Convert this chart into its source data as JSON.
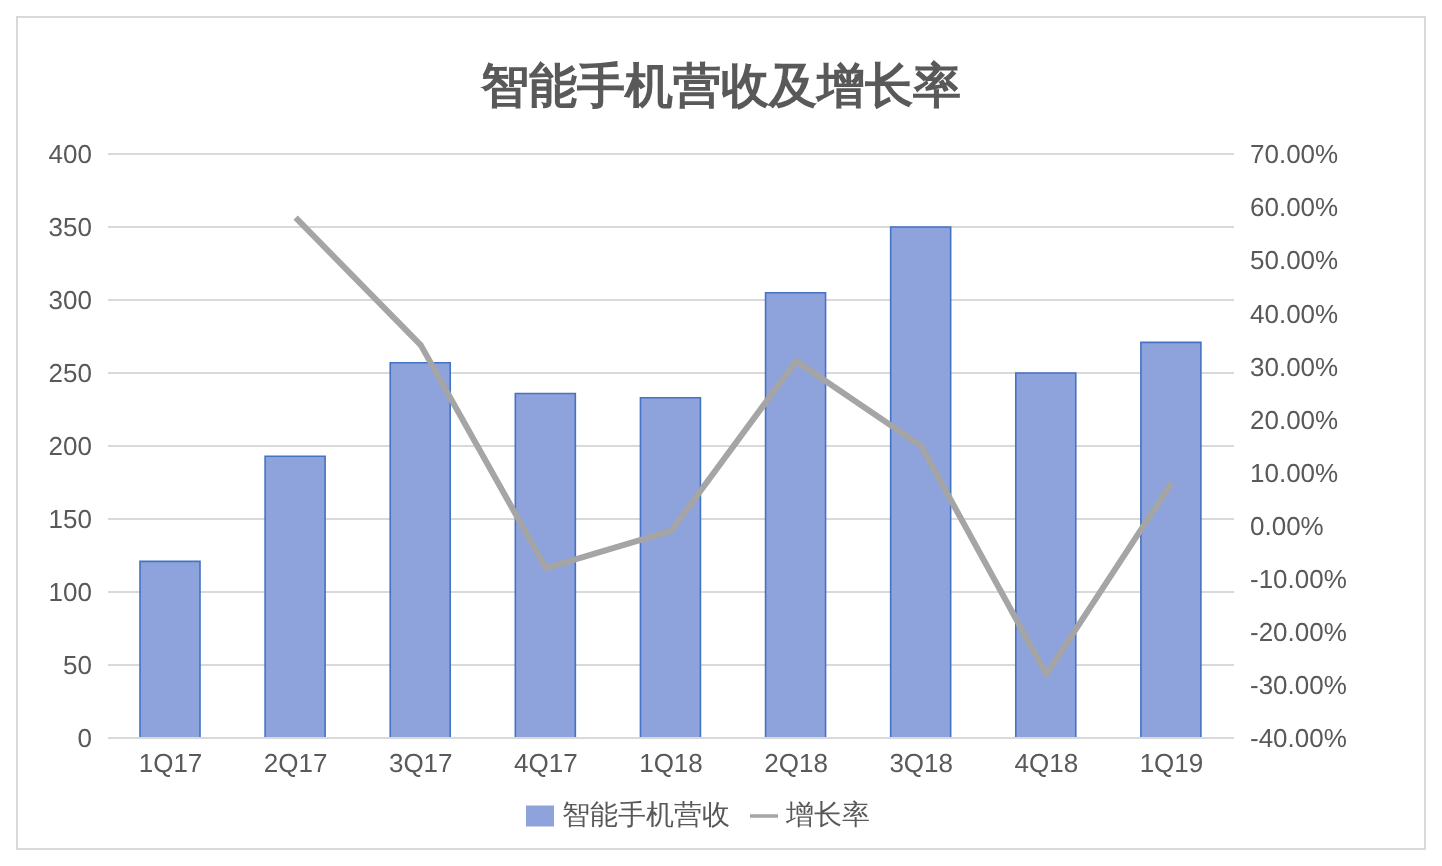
{
  "chart_data": {
    "type": "bar",
    "title": "智能手机营收及增长率",
    "categories": [
      "1Q17",
      "2Q17",
      "3Q17",
      "4Q17",
      "1Q18",
      "2Q18",
      "3Q18",
      "4Q18",
      "1Q19"
    ],
    "series": [
      {
        "name": "智能手机营收",
        "color": "#8ea3dc",
        "values": [
          121,
          193,
          257,
          236,
          233,
          305,
          350,
          250,
          271
        ]
      },
      {
        "name": "增长率",
        "type": "line",
        "axis": "y2",
        "color": "#a5a5a5",
        "values": [
          null,
          58,
          34,
          -8,
          -1,
          31,
          15,
          -28,
          8
        ]
      }
    ],
    "ylim": [
      0,
      400
    ],
    "yticks": [
      0,
      50,
      100,
      150,
      200,
      250,
      300,
      350,
      400
    ],
    "y2lim": [
      -40,
      70
    ],
    "y2ticks": [
      {
        "value": -40,
        "label": "-40.00%"
      },
      {
        "value": -30,
        "label": "-30.00%"
      },
      {
        "value": -20,
        "label": "-20.00%"
      },
      {
        "value": -10,
        "label": "-10.00%"
      },
      {
        "value": 0,
        "label": "0.00%"
      },
      {
        "value": 10,
        "label": "10.00%"
      },
      {
        "value": 20,
        "label": "20.00%"
      },
      {
        "value": 30,
        "label": "30.00%"
      },
      {
        "value": 40,
        "label": "40.00%"
      },
      {
        "value": 50,
        "label": "50.00%"
      },
      {
        "value": 60,
        "label": "60.00%"
      },
      {
        "value": 70,
        "label": "70.00%"
      }
    ],
    "grid": "y",
    "legend": "bottom",
    "marker": "none",
    "line_style": "solid"
  }
}
